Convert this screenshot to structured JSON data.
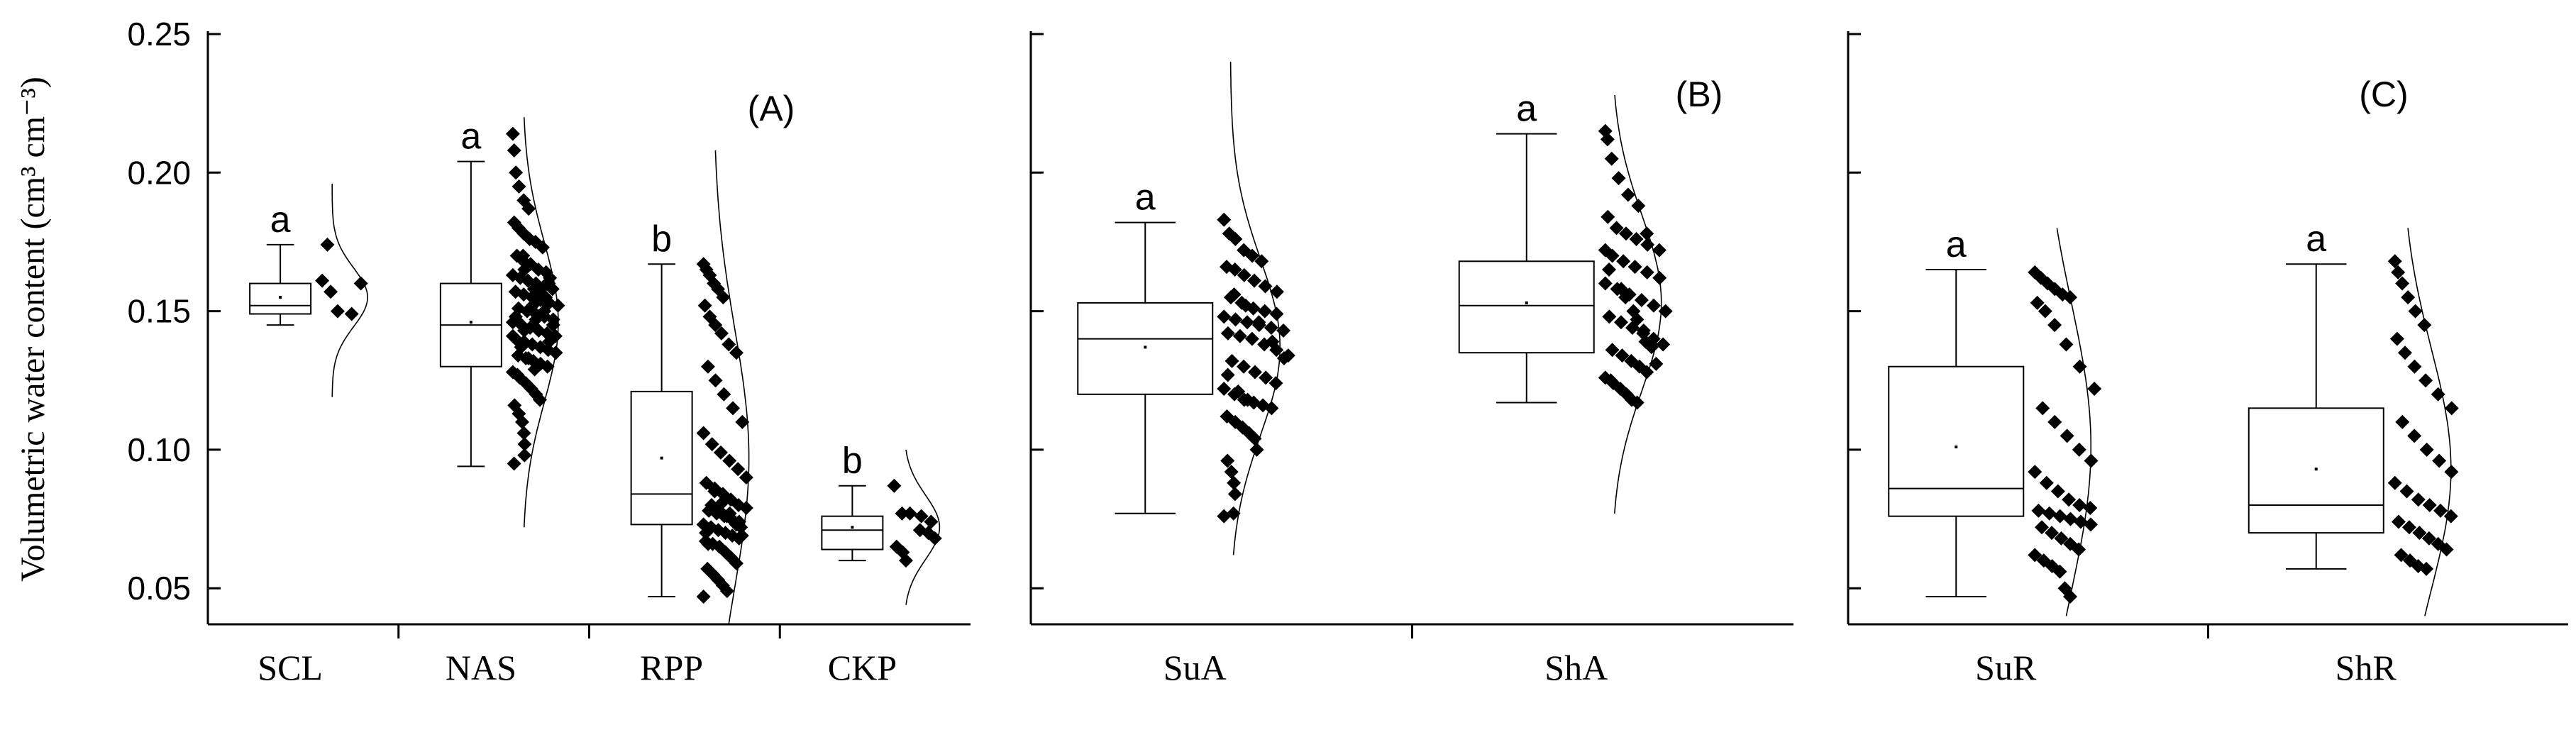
{
  "chart_data": {
    "type": "box",
    "ylabel": "Volumetric water content (cm³ cm⁻³)",
    "ylim": [
      0.037,
      0.25
    ],
    "yticks": [
      0.05,
      0.1,
      0.15,
      0.2,
      0.25
    ],
    "ytick_labels": [
      "0.05",
      "0.10",
      "0.15",
      "0.20",
      "0.25"
    ],
    "grid": false,
    "panels": [
      {
        "label": "(A)",
        "groups": [
          {
            "name": "SCL",
            "letter": "a",
            "whisker_low": 0.145,
            "q1": 0.149,
            "median": 0.152,
            "mean": 0.155,
            "q3": 0.16,
            "whisker_high": 0.174,
            "points": [
              0.161,
              0.157,
              0.15,
              0.174,
              0.149,
              0.16
            ],
            "curve_range": [
              0.119,
              0.196
            ]
          },
          {
            "name": "NAS",
            "letter": "a",
            "whisker_low": 0.094,
            "q1": 0.13,
            "median": 0.145,
            "mean": 0.146,
            "q3": 0.16,
            "whisker_high": 0.204,
            "points": [
              0.214,
              0.208,
              0.2,
              0.195,
              0.19,
              0.187,
              0.182,
              0.18,
              0.178,
              0.176,
              0.175,
              0.173,
              0.17,
              0.168,
              0.167,
              0.165,
              0.164,
              0.163,
              0.162,
              0.161,
              0.16,
              0.159,
              0.158,
              0.157,
              0.156,
              0.155,
              0.154,
              0.153,
              0.152,
              0.151,
              0.15,
              0.149,
              0.148,
              0.147,
              0.146,
              0.145,
              0.144,
              0.143,
              0.142,
              0.141,
              0.14,
              0.139,
              0.138,
              0.137,
              0.136,
              0.135,
              0.134,
              0.133,
              0.132,
              0.131,
              0.13,
              0.128,
              0.126,
              0.124,
              0.122,
              0.12,
              0.118,
              0.116,
              0.113,
              0.11,
              0.106,
              0.102,
              0.098,
              0.095,
              0.165,
              0.158,
              0.15,
              0.145,
              0.141,
              0.137,
              0.133,
              0.129,
              0.155,
              0.162,
              0.148,
              0.143,
              0.152,
              0.157,
              0.139,
              0.135,
              0.127,
              0.17,
              0.147,
              0.154,
              0.16
            ],
            "curve_range": [
              0.072,
              0.22
            ]
          },
          {
            "name": "RPP",
            "letter": "b",
            "whisker_low": 0.047,
            "q1": 0.073,
            "median": 0.084,
            "mean": 0.097,
            "q3": 0.121,
            "whisker_high": 0.167,
            "points": [
              0.167,
              0.165,
              0.163,
              0.16,
              0.158,
              0.155,
              0.152,
              0.148,
              0.145,
              0.142,
              0.138,
              0.135,
              0.13,
              0.125,
              0.12,
              0.115,
              0.11,
              0.106,
              0.102,
              0.099,
              0.096,
              0.093,
              0.09,
              0.088,
              0.086,
              0.084,
              0.082,
              0.08,
              0.079,
              0.078,
              0.077,
              0.076,
              0.075,
              0.074,
              0.073,
              0.072,
              0.071,
              0.07,
              0.069,
              0.068,
              0.067,
              0.066,
              0.065,
              0.063,
              0.061,
              0.059,
              0.057,
              0.055,
              0.053,
              0.051,
              0.049,
              0.047,
              0.08,
              0.078,
              0.076,
              0.074,
              0.072,
              0.07,
              0.085,
              0.081,
              0.077,
              0.073,
              0.069,
              0.066
            ],
            "curve_range": [
              0.037,
              0.208
            ]
          },
          {
            "name": "CKP",
            "letter": "b",
            "whisker_low": 0.06,
            "q1": 0.064,
            "median": 0.071,
            "mean": 0.072,
            "q3": 0.076,
            "whisker_high": 0.087,
            "points": [
              0.087,
              0.077,
              0.077,
              0.071,
              0.07,
              0.068,
              0.065,
              0.063,
              0.06,
              0.076,
              0.074
            ],
            "curve_range": [
              0.044,
              0.1
            ]
          }
        ]
      },
      {
        "label": "(B)",
        "groups": [
          {
            "name": "SuA",
            "letter": "a",
            "whisker_low": 0.077,
            "q1": 0.12,
            "median": 0.14,
            "mean": 0.137,
            "q3": 0.153,
            "whisker_high": 0.182,
            "points": [
              0.183,
              0.178,
              0.176,
              0.172,
              0.17,
              0.168,
              0.166,
              0.165,
              0.163,
              0.161,
              0.159,
              0.157,
              0.155,
              0.153,
              0.151,
              0.15,
              0.149,
              0.148,
              0.147,
              0.146,
              0.145,
              0.144,
              0.143,
              0.142,
              0.141,
              0.14,
              0.138,
              0.136,
              0.134,
              0.132,
              0.13,
              0.128,
              0.126,
              0.124,
              0.122,
              0.12,
              0.118,
              0.117,
              0.116,
              0.115,
              0.112,
              0.11,
              0.108,
              0.106,
              0.104,
              0.1,
              0.096,
              0.092,
              0.088,
              0.084,
              0.077,
              0.076,
              0.156,
              0.152,
              0.146,
              0.139,
              0.133,
              0.127,
              0.121,
              0.118
            ],
            "curve_range": [
              0.062,
              0.24
            ]
          },
          {
            "name": "ShA",
            "letter": "a",
            "whisker_low": 0.117,
            "q1": 0.135,
            "median": 0.152,
            "mean": 0.153,
            "q3": 0.168,
            "whisker_high": 0.214,
            "points": [
              0.215,
              0.212,
              0.205,
              0.198,
              0.192,
              0.188,
              0.184,
              0.18,
              0.178,
              0.176,
              0.174,
              0.172,
              0.17,
              0.168,
              0.166,
              0.164,
              0.162,
              0.16,
              0.158,
              0.156,
              0.154,
              0.152,
              0.15,
              0.148,
              0.146,
              0.144,
              0.142,
              0.14,
              0.138,
              0.136,
              0.134,
              0.132,
              0.13,
              0.128,
              0.126,
              0.124,
              0.122,
              0.12,
              0.118,
              0.117,
              0.165,
              0.158,
              0.15,
              0.143,
              0.137,
              0.131,
              0.125,
              0.155,
              0.147,
              0.139,
              0.178,
              0.172
            ],
            "curve_range": [
              0.077,
              0.228
            ]
          }
        ]
      },
      {
        "label": "(C)",
        "groups": [
          {
            "name": "SuR",
            "letter": "a",
            "whisker_low": 0.047,
            "q1": 0.076,
            "median": 0.086,
            "mean": 0.101,
            "q3": 0.13,
            "whisker_high": 0.165,
            "points": [
              0.164,
              0.162,
              0.16,
              0.158,
              0.156,
              0.155,
              0.153,
              0.15,
              0.145,
              0.138,
              0.13,
              0.122,
              0.115,
              0.11,
              0.105,
              0.1,
              0.096,
              0.092,
              0.088,
              0.085,
              0.082,
              0.08,
              0.079,
              0.078,
              0.077,
              0.076,
              0.075,
              0.074,
              0.073,
              0.072,
              0.07,
              0.068,
              0.066,
              0.064,
              0.062,
              0.06,
              0.058,
              0.056,
              0.05,
              0.047
            ],
            "curve_range": [
              0.04,
              0.18
            ]
          },
          {
            "name": "ShR",
            "letter": "a",
            "whisker_low": 0.057,
            "q1": 0.07,
            "median": 0.08,
            "mean": 0.093,
            "q3": 0.115,
            "whisker_high": 0.167,
            "points": [
              0.168,
              0.164,
              0.16,
              0.155,
              0.15,
              0.145,
              0.14,
              0.135,
              0.13,
              0.125,
              0.12,
              0.115,
              0.11,
              0.105,
              0.1,
              0.096,
              0.092,
              0.088,
              0.085,
              0.082,
              0.08,
              0.078,
              0.076,
              0.074,
              0.072,
              0.07,
              0.068,
              0.066,
              0.064,
              0.062,
              0.06,
              0.058,
              0.057
            ],
            "curve_range": [
              0.04,
              0.18
            ]
          }
        ]
      }
    ]
  }
}
